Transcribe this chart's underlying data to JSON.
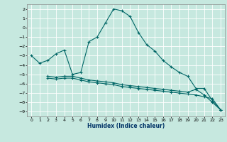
{
  "xlabel": "Humidex (Indice chaleur)",
  "xlim": [
    -0.5,
    23.5
  ],
  "ylim": [
    -9.5,
    2.5
  ],
  "yticks": [
    2,
    1,
    0,
    -1,
    -2,
    -3,
    -4,
    -5,
    -6,
    -7,
    -8,
    -9
  ],
  "xticks": [
    0,
    1,
    2,
    3,
    4,
    5,
    6,
    7,
    8,
    9,
    10,
    11,
    12,
    13,
    14,
    15,
    16,
    17,
    18,
    19,
    20,
    21,
    22,
    23
  ],
  "background_color": "#c6e8df",
  "grid_color": "#ffffff",
  "line_color": "#006666",
  "line1_x": [
    0,
    1,
    2,
    3,
    4,
    5,
    6,
    7,
    8,
    9,
    10,
    11,
    12,
    13,
    14,
    15,
    16,
    17,
    18,
    19,
    20,
    21,
    22,
    23
  ],
  "line1_y": [
    -3.0,
    -3.8,
    -3.5,
    -2.8,
    -2.4,
    -5.0,
    -4.8,
    -1.5,
    -1.0,
    0.5,
    2.0,
    1.8,
    1.2,
    -0.5,
    -1.8,
    -2.5,
    -3.5,
    -4.2,
    -4.8,
    -5.2,
    -6.5,
    -6.5,
    -7.8,
    -8.8
  ],
  "line2_x": [
    2,
    3,
    4,
    5,
    6,
    7,
    8,
    9,
    10,
    11,
    12,
    13,
    14,
    15,
    16,
    17,
    18,
    19,
    20,
    21,
    22,
    23
  ],
  "line2_y": [
    -5.4,
    -5.5,
    -5.4,
    -5.4,
    -5.6,
    -5.8,
    -5.9,
    -6.0,
    -6.1,
    -6.3,
    -6.4,
    -6.5,
    -6.6,
    -6.7,
    -6.8,
    -6.9,
    -7.0,
    -7.1,
    -7.2,
    -7.4,
    -7.6,
    -8.8
  ],
  "line3_x": [
    2,
    3,
    4,
    5,
    6,
    7,
    8,
    9,
    10,
    11,
    12,
    13,
    14,
    15,
    16,
    17,
    18,
    19,
    20,
    21,
    22,
    23
  ],
  "line3_y": [
    -5.2,
    -5.3,
    -5.2,
    -5.2,
    -5.4,
    -5.6,
    -5.7,
    -5.8,
    -5.9,
    -6.1,
    -6.2,
    -6.3,
    -6.4,
    -6.5,
    -6.6,
    -6.7,
    -6.8,
    -6.9,
    -6.6,
    -7.2,
    -8.0,
    -8.8
  ]
}
